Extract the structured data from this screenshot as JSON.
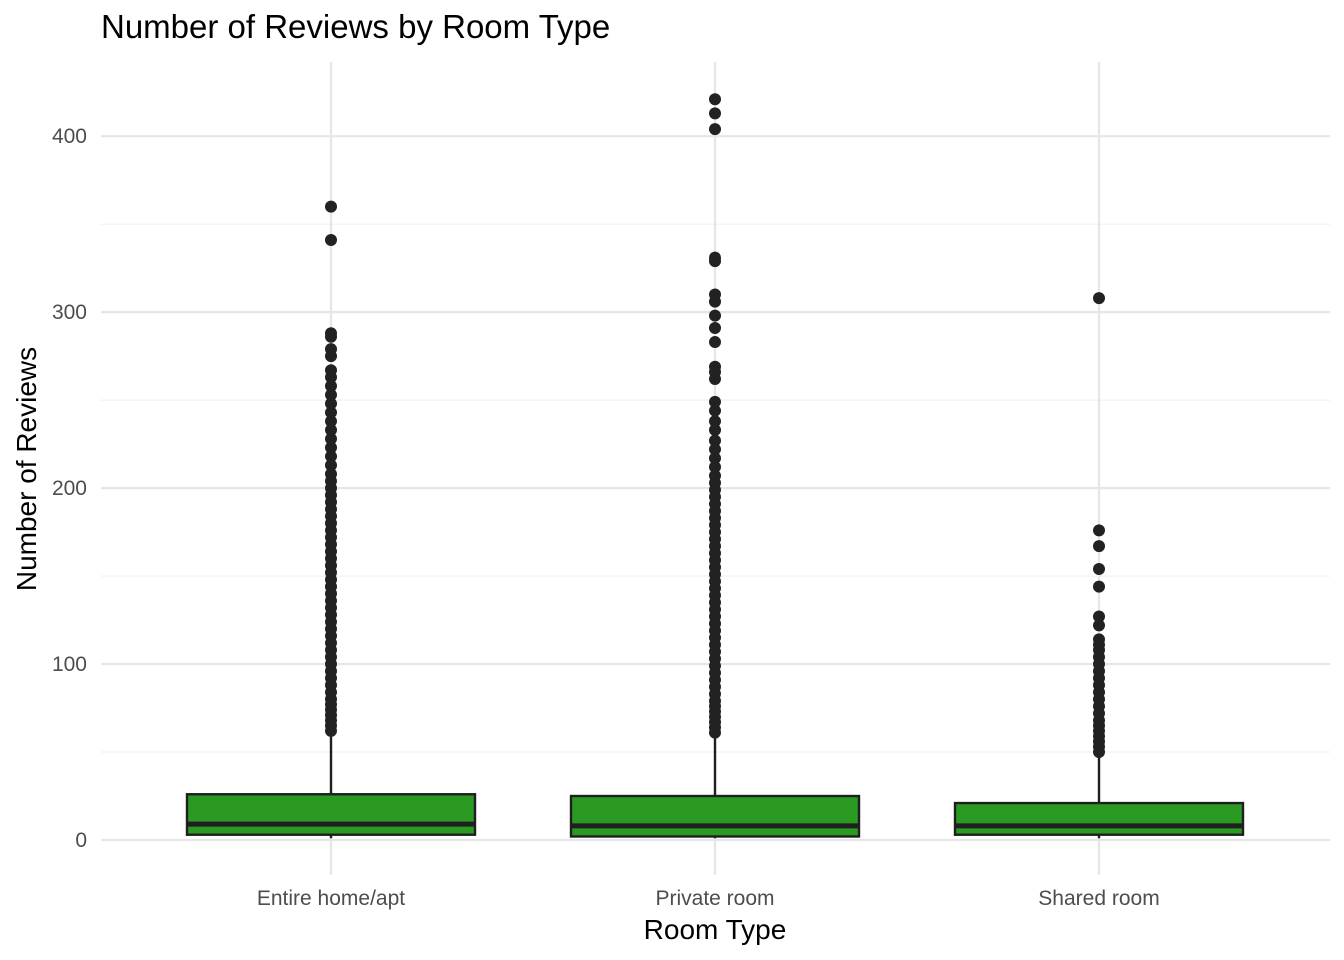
{
  "chart_data": {
    "type": "boxplot",
    "title": "Number of Reviews by Room Type",
    "xlabel": "Room Type",
    "ylabel": "Number of Reviews",
    "ylim": [
      -20,
      443
    ],
    "yticks": [
      0,
      100,
      200,
      300,
      400
    ],
    "grid": true,
    "colors": {
      "box_fill": "#2a9a22",
      "box_line": "#1f1f1f",
      "outlier": "#222222",
      "grid": "#e6e6e6"
    },
    "categories": [
      "Entire home/apt",
      "Private room",
      "Shared room"
    ],
    "boxes": [
      {
        "category": "Entire home/apt",
        "whisker_low": 1,
        "q1": 3,
        "median": 9,
        "q3": 26,
        "whisker_high": 60,
        "outliers": [
          62,
          65,
          68,
          71,
          74,
          77,
          80,
          84,
          88,
          92,
          96,
          100,
          104,
          108,
          112,
          116,
          120,
          124,
          128,
          132,
          136,
          140,
          144,
          148,
          152,
          156,
          160,
          164,
          168,
          172,
          176,
          180,
          184,
          188,
          192,
          196,
          200,
          204,
          208,
          213,
          218,
          223,
          228,
          233,
          238,
          243,
          248,
          253,
          258,
          263,
          267,
          275,
          279,
          286,
          288,
          341,
          360
        ]
      },
      {
        "category": "Private room",
        "whisker_low": 1,
        "q1": 2,
        "median": 8,
        "q3": 25,
        "whisker_high": 59,
        "outliers": [
          61,
          64,
          67,
          70,
          73,
          76,
          79,
          83,
          87,
          91,
          95,
          99,
          103,
          107,
          111,
          115,
          119,
          123,
          127,
          131,
          135,
          139,
          143,
          147,
          151,
          155,
          159,
          163,
          167,
          171,
          175,
          179,
          183,
          187,
          191,
          195,
          199,
          203,
          207,
          212,
          217,
          222,
          227,
          233,
          238,
          244,
          249,
          262,
          266,
          269,
          283,
          291,
          298,
          306,
          310,
          329,
          331,
          404,
          413,
          421
        ]
      },
      {
        "category": "Shared room",
        "whisker_low": 1,
        "q1": 3,
        "median": 8,
        "q3": 21,
        "whisker_high": 48,
        "outliers": [
          50,
          53,
          56,
          59,
          62,
          65,
          68,
          72,
          76,
          80,
          84,
          88,
          92,
          96,
          100,
          104,
          108,
          111,
          114,
          122,
          127,
          144,
          154,
          167,
          176,
          308
        ]
      }
    ]
  }
}
